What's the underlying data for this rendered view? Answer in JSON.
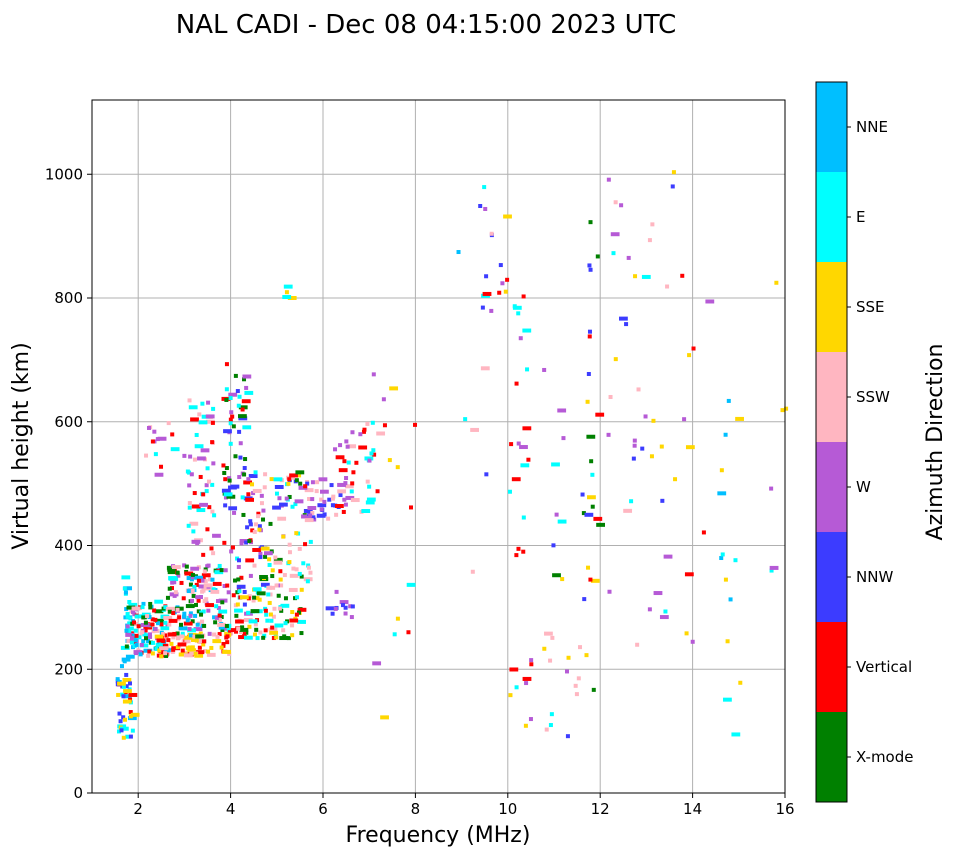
{
  "chart_data": {
    "type": "scatter",
    "title": "NAL CADI - Dec 08 04:15:00 2023 UTC",
    "xlabel": "Frequency (MHz)",
    "ylabel": "Virtual height (km)",
    "xlim": [
      1,
      16
    ],
    "ylim": [
      0,
      1120
    ],
    "xticks": [
      2,
      4,
      6,
      8,
      10,
      12,
      14,
      16
    ],
    "yticks": [
      0,
      200,
      400,
      600,
      800,
      1000
    ],
    "grid": true,
    "colorbar": {
      "label": "Azimuth Direction",
      "categories": [
        {
          "name": "X-mode",
          "color": "#008000"
        },
        {
          "name": "Vertical",
          "color": "#ff0000"
        },
        {
          "name": "NNW",
          "color": "#3c3cff"
        },
        {
          "name": "W",
          "color": "#b65ad6"
        },
        {
          "name": "SSW",
          "color": "#ffb6c1"
        },
        {
          "name": "SSE",
          "color": "#ffd700"
        },
        {
          "name": "E",
          "color": "#00ffff"
        },
        {
          "name": "NNE",
          "color": "#00bfff"
        }
      ]
    },
    "clusters": [
      {
        "f": [
          1.5,
          1.85
        ],
        "h": [
          88,
          200
        ],
        "n": 40,
        "dir": [
          "Vertical",
          "NNE",
          "E",
          "SSE",
          "NNW"
        ]
      },
      {
        "f": [
          1.6,
          1.8
        ],
        "h": [
          200,
          350
        ],
        "n": 18,
        "dir": [
          "NNE",
          "E"
        ]
      },
      {
        "f": [
          1.7,
          2.6
        ],
        "h": [
          220,
          310
        ],
        "n": 130,
        "dir": [
          "Vertical",
          "SSW",
          "E",
          "NNE",
          "W",
          "X-mode"
        ]
      },
      {
        "f": [
          2.2,
          4.0
        ],
        "h": [
          220,
          260
        ],
        "n": 80,
        "dir": [
          "SSW",
          "SSE",
          "Vertical"
        ]
      },
      {
        "f": [
          2.6,
          3.8
        ],
        "h": [
          250,
          370
        ],
        "n": 150,
        "dir": [
          "Vertical",
          "E",
          "NNE",
          "W",
          "SSW",
          "X-mode"
        ]
      },
      {
        "f": [
          3.0,
          3.6
        ],
        "h": [
          380,
          640
        ],
        "n": 55,
        "dir": [
          "Vertical",
          "SSW",
          "E",
          "W"
        ]
      },
      {
        "f": [
          2.1,
          3.0
        ],
        "h": [
          500,
          620
        ],
        "n": 15,
        "dir": [
          "Vertical",
          "SSW",
          "W",
          "E"
        ]
      },
      {
        "f": [
          3.8,
          4.3
        ],
        "h": [
          250,
          700
        ],
        "n": 90,
        "dir": [
          "Vertical",
          "X-mode",
          "E",
          "W",
          "NNW"
        ]
      },
      {
        "f": [
          4.0,
          5.5
        ],
        "h": [
          250,
          330
        ],
        "n": 90,
        "dir": [
          "SSE",
          "X-mode",
          "E",
          "SSW",
          "Vertical"
        ]
      },
      {
        "f": [
          4.3,
          5.7
        ],
        "h": [
          330,
          520
        ],
        "n": 120,
        "dir": [
          "X-mode",
          "W",
          "NNW",
          "E",
          "Vertical",
          "SSE",
          "SSW"
        ]
      },
      {
        "f": [
          5.6,
          6.5
        ],
        "h": [
          440,
          510
        ],
        "n": 35,
        "dir": [
          "W",
          "SSW",
          "NNW"
        ]
      },
      {
        "f": [
          6.2,
          7.2
        ],
        "h": [
          450,
          600
        ],
        "n": 40,
        "dir": [
          "W",
          "SSW",
          "E",
          "Vertical"
        ]
      },
      {
        "f": [
          6.0,
          6.8
        ],
        "h": [
          280,
          340
        ],
        "n": 12,
        "dir": [
          "NNW",
          "W"
        ]
      },
      {
        "f": [
          5.1,
          5.3
        ],
        "h": [
          800,
          830
        ],
        "n": 4,
        "dir": [
          "E",
          "SSE"
        ]
      },
      {
        "f": [
          9.4,
          10.0
        ],
        "h": [
          760,
          960
        ],
        "n": 14,
        "dir": [
          "NNW",
          "W",
          "Vertical",
          "SSW",
          "SSE",
          "E"
        ]
      },
      {
        "f": [
          10.0,
          10.5
        ],
        "h": [
          380,
          830
        ],
        "n": 20,
        "dir": [
          "Vertical",
          "E",
          "W"
        ]
      },
      {
        "f": [
          10.0,
          10.5
        ],
        "h": [
          100,
          220
        ],
        "n": 9,
        "dir": [
          "Vertical",
          "E",
          "SSE",
          "W"
        ]
      },
      {
        "f": [
          10.7,
          11.8
        ],
        "h": [
          90,
          700
        ],
        "n": 28,
        "dir": [
          "W",
          "SSW",
          "E",
          "SSE",
          "NNW",
          "X-mode"
        ]
      },
      {
        "f": [
          11.6,
          12.0
        ],
        "h": [
          100,
          1010
        ],
        "n": 20,
        "dir": [
          "X-mode",
          "Vertical",
          "SSE",
          "NNW"
        ]
      },
      {
        "f": [
          12.1,
          13.6
        ],
        "h": [
          200,
          1015
        ],
        "n": 38,
        "dir": [
          "SSE",
          "NNW",
          "W",
          "SSW",
          "E"
        ]
      },
      {
        "f": [
          13.7,
          14.3
        ],
        "h": [
          190,
          850
        ],
        "n": 10,
        "dir": [
          "SSE",
          "Vertical",
          "W"
        ]
      },
      {
        "f": [
          14.5,
          15.0
        ],
        "h": [
          85,
          640
        ],
        "n": 14,
        "dir": [
          "E",
          "NNE",
          "SSE",
          "X-mode"
        ]
      },
      {
        "f": [
          15.6,
          16.0
        ],
        "h": [
          270,
          880
        ],
        "n": 6,
        "dir": [
          "SSE",
          "W",
          "E"
        ]
      },
      {
        "f": [
          7.0,
          8.0
        ],
        "h": [
          120,
          800
        ],
        "n": 14,
        "dir": [
          "W",
          "SSE",
          "E",
          "Vertical"
        ]
      },
      {
        "f": [
          8.6,
          9.6
        ],
        "h": [
          85,
          1000
        ],
        "n": 8,
        "dir": [
          "E",
          "NNW",
          "NNE",
          "SSW"
        ]
      }
    ]
  }
}
